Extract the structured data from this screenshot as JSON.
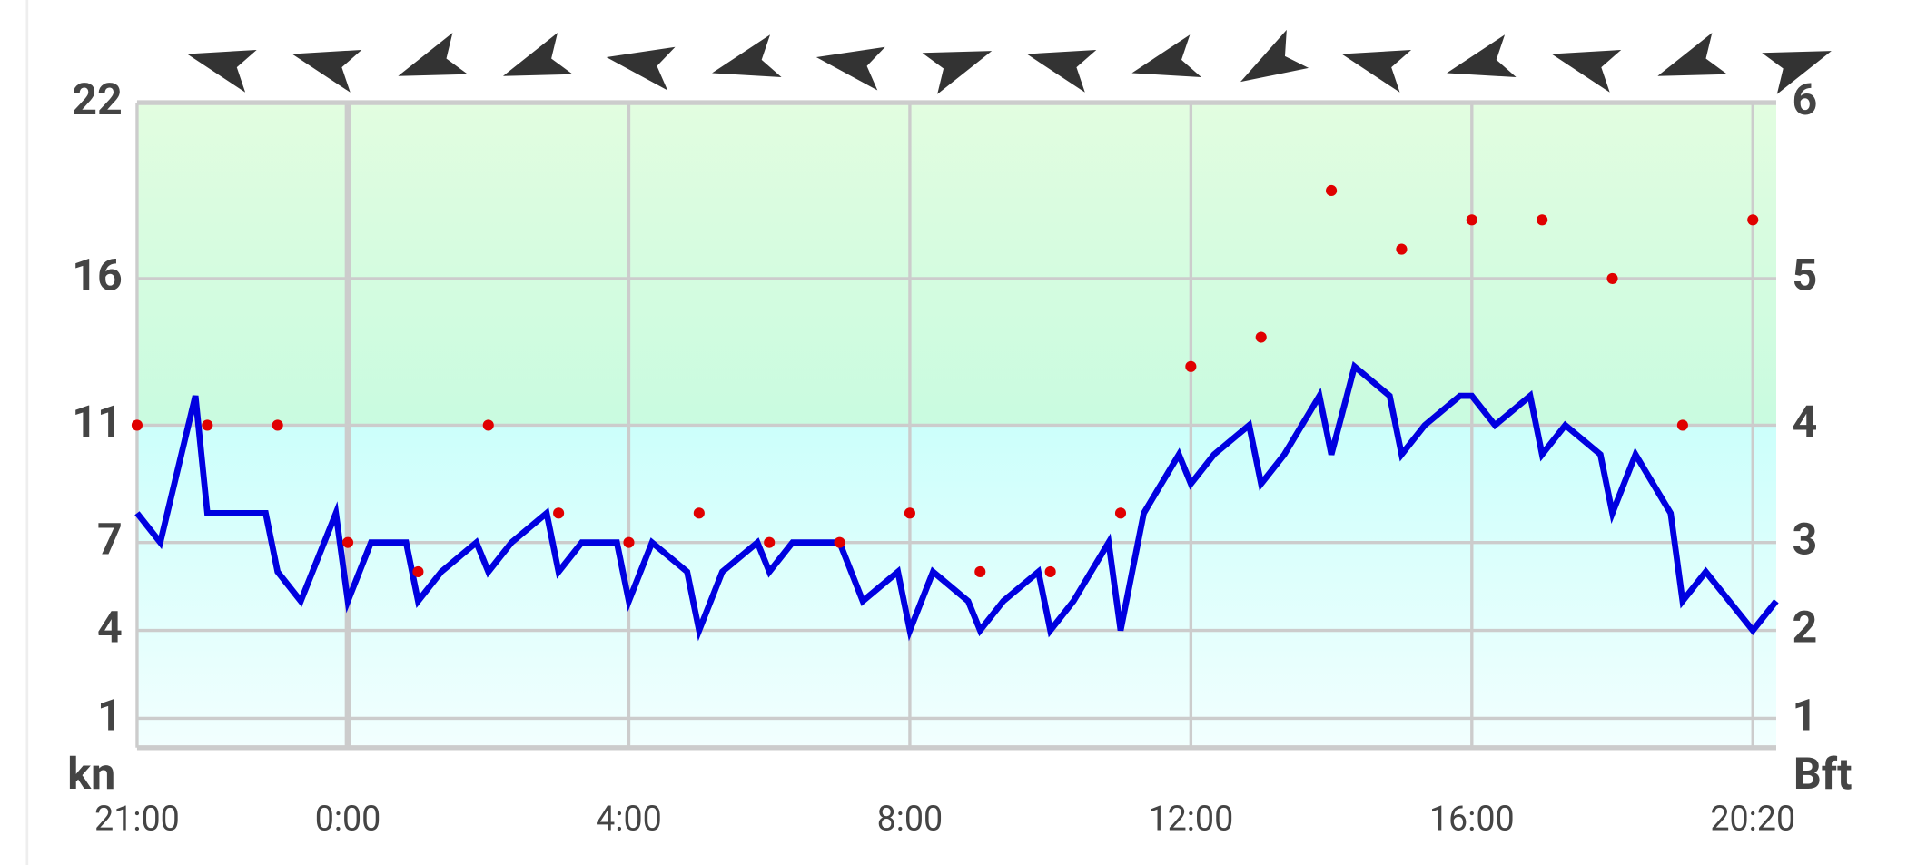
{
  "chart_data": {
    "type": "line",
    "y_label": "kn",
    "y2_label": "Bft",
    "xlim": [
      0,
      23.333
    ],
    "xticks": [
      {
        "value": 0,
        "label": "21:00"
      },
      {
        "value": 3,
        "label": "0:00"
      },
      {
        "value": 7,
        "label": "4:00"
      },
      {
        "value": 11,
        "label": "8:00"
      },
      {
        "value": 15,
        "label": "12:00"
      },
      {
        "value": 19,
        "label": "16:00"
      },
      {
        "value": 23,
        "label": "20:20"
      }
    ],
    "ylim": [
      0,
      22
    ],
    "yticks": [
      1,
      4,
      7,
      11,
      16,
      22
    ],
    "y2lim": [
      0,
      22
    ],
    "y2ticks": [
      1,
      {
        "value": 4,
        "label": "2"
      },
      {
        "value": 7,
        "label": "3"
      },
      {
        "value": 11,
        "label": "4"
      },
      {
        "value": 16,
        "label": "5"
      },
      {
        "value": 22,
        "label": "6"
      }
    ],
    "grid": true,
    "series": [
      {
        "color": "#0000e0",
        "mode": "line",
        "x": [
          0,
          0.33,
          0.83,
          1,
          1.33,
          1.83,
          2,
          2.33,
          2.83,
          3,
          3.33,
          3.83,
          4,
          4.33,
          4.83,
          5,
          5.33,
          5.83,
          6,
          6.33,
          6.83,
          7,
          7.33,
          7.83,
          8,
          8.33,
          8.83,
          9,
          9.33,
          9.83,
          10,
          10.33,
          10.83,
          11,
          11.33,
          11.83,
          12,
          12.33,
          12.83,
          13,
          13.33,
          13.83,
          14,
          14.33,
          14.83,
          15,
          15.33,
          15.83,
          16,
          16.33,
          16.83,
          17,
          17.33,
          17.83,
          18,
          18.33,
          18.83,
          19,
          19.33,
          19.83,
          20,
          20.33,
          20.83,
          21,
          21.33,
          21.83,
          22,
          22.33,
          23,
          23.333
        ],
        "values": [
          8,
          7,
          12,
          8,
          8,
          8,
          6,
          5,
          8,
          5,
          7,
          7,
          5,
          6,
          7,
          6,
          7,
          8,
          6,
          7,
          7,
          5,
          7,
          6,
          4,
          6,
          7,
          6,
          7,
          7,
          7,
          5,
          6,
          4,
          6,
          5,
          4,
          5,
          6,
          4,
          5,
          7,
          4,
          8,
          10,
          9,
          10,
          11,
          9,
          10,
          12,
          10,
          13,
          12,
          10,
          11,
          12,
          12,
          11,
          12,
          10,
          11,
          10,
          8,
          10,
          8,
          5,
          6,
          4,
          5
        ]
      },
      {
        "color": "#e00000",
        "mode": "markers",
        "x": [
          0,
          1,
          2,
          3,
          4,
          5,
          6,
          7,
          8,
          9,
          10,
          11,
          12,
          13,
          14,
          15,
          16,
          17,
          18,
          19,
          20,
          21,
          22,
          23
        ],
        "values": [
          11,
          11,
          11,
          7,
          6,
          11,
          8,
          7,
          8,
          7,
          7,
          8,
          6,
          6,
          8,
          13,
          14,
          19,
          17,
          18,
          18,
          16,
          11,
          18
        ]
      }
    ],
    "wind_direction": [
      285,
      285,
      250,
      250,
      280,
      255,
      280,
      70,
      285,
      255,
      240,
      285,
      255,
      285,
      250,
      70
    ]
  }
}
